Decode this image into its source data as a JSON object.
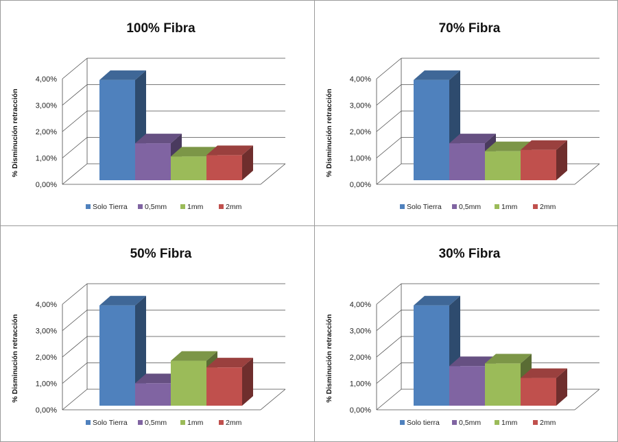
{
  "chart_data": [
    {
      "type": "bar",
      "title": "100% Fibra",
      "ylabel": "% Disminución retracción",
      "yticks": [
        "0,00%",
        "1,00%",
        "2,00%",
        "3,00%",
        "4,00%"
      ],
      "ylim": [
        0,
        4
      ],
      "series": [
        {
          "name": "Solo Tierra",
          "value": 3.8
        },
        {
          "name": "0,5mm",
          "value": 1.4
        },
        {
          "name": "1mm",
          "value": 0.9
        },
        {
          "name": "2mm",
          "value": 0.95
        }
      ],
      "legend_position": "bottom",
      "grid": true
    },
    {
      "type": "bar",
      "title": "70% Fibra",
      "ylabel": "% Disminución retracción",
      "yticks": [
        "0,00%",
        "1,00%",
        "2,00%",
        "3,00%",
        "4,00%"
      ],
      "ylim": [
        0,
        4
      ],
      "series": [
        {
          "name": "Solo Tierra",
          "value": 3.8
        },
        {
          "name": "0,5mm",
          "value": 1.4
        },
        {
          "name": "1mm",
          "value": 1.1
        },
        {
          "name": "2mm",
          "value": 1.15
        }
      ],
      "legend_position": "bottom",
      "grid": true
    },
    {
      "type": "bar",
      "title": "50% Fibra",
      "ylabel": "% Disminución retracción",
      "yticks": [
        "0,00%",
        "1,00%",
        "2,00%",
        "3,00%",
        "4,00%"
      ],
      "ylim": [
        0,
        4
      ],
      "series": [
        {
          "name": "Solo Tierra",
          "value": 3.8
        },
        {
          "name": "0,5mm",
          "value": 0.85
        },
        {
          "name": "1mm",
          "value": 1.7
        },
        {
          "name": "2mm",
          "value": 1.45
        }
      ],
      "legend_position": "bottom",
      "grid": true
    },
    {
      "type": "bar",
      "title": "30% Fibra",
      "ylabel": "% Disminución retracción",
      "yticks": [
        "0,00%",
        "1,00%",
        "2,00%",
        "3,00%",
        "4,00%"
      ],
      "ylim": [
        0,
        4
      ],
      "series": [
        {
          "name": "Solo tierra",
          "value": 3.8
        },
        {
          "name": "0,5mm",
          "value": 1.5
        },
        {
          "name": "1mm",
          "value": 1.6
        },
        {
          "name": "2mm",
          "value": 1.05
        }
      ],
      "legend_position": "bottom",
      "grid": true
    }
  ],
  "colors": {
    "series": [
      "#4F81BD",
      "#8064A2",
      "#9BBB59",
      "#C0504D"
    ],
    "grid": "#4a4a4a",
    "panel_border": "#9a9a9a"
  }
}
